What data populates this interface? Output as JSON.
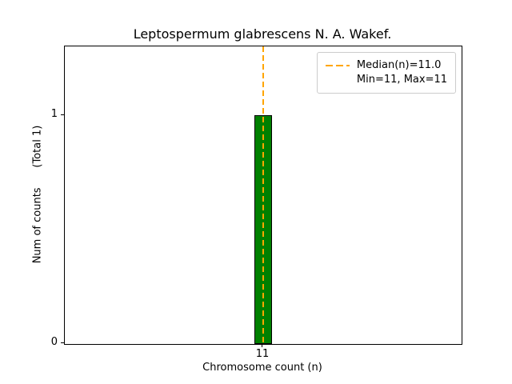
{
  "chart_data": {
    "type": "bar",
    "title": "Leptospermum glabrescens N. A. Wakef.",
    "categories": [
      "11"
    ],
    "values": [
      1
    ],
    "xlabel": "Chromosome count (n)",
    "ylabel": "Num of counts      (Total 1)",
    "ylim": [
      0,
      1.3
    ],
    "ytick_labels": [
      "0",
      "1"
    ],
    "yticks": [
      0,
      1
    ],
    "bar_color": "#008000",
    "bar_edge_color": "#000000",
    "median": 11.0,
    "min": 11,
    "max": 11,
    "total_counts": 1,
    "median_line": {
      "x": "11",
      "color": "#FFA500",
      "style": "dashed"
    },
    "legend": [
      "Median(n)=11.0",
      "Min=11, Max=11"
    ],
    "legend_position": "upper right",
    "grid": false
  }
}
